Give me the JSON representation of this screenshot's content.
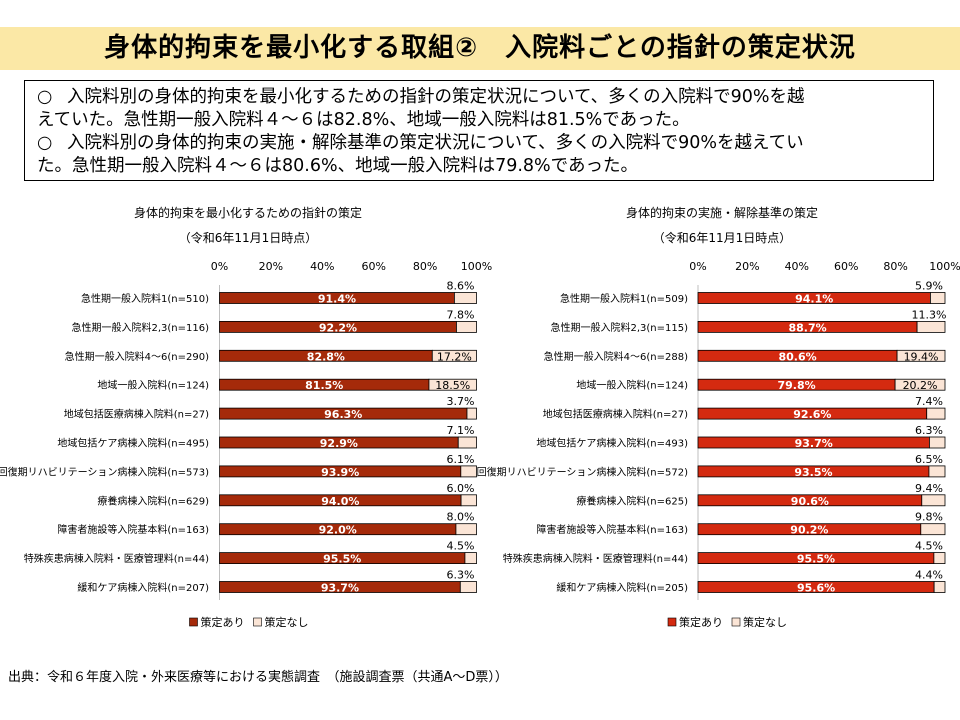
{
  "slide": {
    "title": "身体的拘束を最小化する取組②　入院料ごとの指針の策定状況",
    "summary": [
      {
        "mark": "○",
        "line1": "入院料別の身体的拘束を最小化するための指針の策定状況について、多くの入院料で90%を越",
        "line2": "えていた。急性期一般入院料４～６は82.8%、地域一般入院料は81.5%であった。"
      },
      {
        "mark": "○",
        "line1": "入院料別の身体的拘束の実施・解除基準の策定状況について、多くの入院料で90%を越えてい",
        "line2": "た。急性期一般入院料４～６は80.6%、地域一般入院料は79.8%であった。"
      }
    ],
    "source": "出典：令和６年度入院・外来医療等における実態調査　（施設調査票（共通A～D票））"
  },
  "chart_data": [
    {
      "type": "bar",
      "orientation": "horizontal",
      "stacked": true,
      "title": "身体的拘束を最小化するための指針の策定",
      "subtitle": "（令和6年11月1日時点）",
      "tick_labels": [
        "0%",
        "20%",
        "40%",
        "60%",
        "80%",
        "100%"
      ],
      "xlim": [
        0,
        100
      ],
      "legend_position": "bottom-left",
      "categories": [
        "急性期一般入院料1(n=510)",
        "急性期一般入院料2,3(n=116)",
        "急性期一般入院料4～6(n=290)",
        "地域一般入院料(n=124)",
        "地域包括医療病棟入院料(n=27)",
        "地域包括ケア病棟入院料(n=495)",
        "回復期リハビリテーション病棟入院料(n=573)",
        "療養病棟入院料(n=629)",
        "障害者施設等入院基本料(n=163)",
        "特殊疾患病棟入院料・医療管理料(n=44)",
        "緩和ケア病棟入院料(n=207)"
      ],
      "series": [
        {
          "name": "策定あり",
          "color": "#a52a0a",
          "values": [
            91.4,
            92.2,
            82.8,
            81.5,
            96.3,
            92.9,
            93.9,
            94.0,
            92.0,
            95.5,
            93.7
          ]
        },
        {
          "name": "策定なし",
          "color": "#fbe5d6",
          "values": [
            8.6,
            7.8,
            17.2,
            18.5,
            3.7,
            7.1,
            6.1,
            6.0,
            8.0,
            4.5,
            6.3
          ]
        }
      ]
    },
    {
      "type": "bar",
      "orientation": "horizontal",
      "stacked": true,
      "title": "身体的拘束の実施・解除基準の策定",
      "subtitle": "（令和6年11月1日時点）",
      "tick_labels": [
        "0%",
        "20%",
        "40%",
        "60%",
        "80%",
        "100%"
      ],
      "xlim": [
        0,
        100
      ],
      "legend_position": "bottom-left",
      "categories": [
        "急性期一般入院料1(n=509)",
        "急性期一般入院料2,3(n=115)",
        "急性期一般入院料4～6(n=288)",
        "地域一般入院料(n=124)",
        "地域包括医療病棟入院料(n=27)",
        "地域包括ケア病棟入院料(n=493)",
        "回復期リハビリテーション病棟入院料(n=572)",
        "療養病棟入院料(n=625)",
        "障害者施設等入院基本料(n=163)",
        "特殊疾患病棟入院料・医療管理料(n=44)",
        "緩和ケア病棟入院料(n=205)"
      ],
      "series": [
        {
          "name": "策定あり",
          "color": "#d42a10",
          "values": [
            94.1,
            88.7,
            80.6,
            79.8,
            92.6,
            93.7,
            93.5,
            90.6,
            90.2,
            95.5,
            95.6
          ]
        },
        {
          "name": "策定なし",
          "color": "#fbe5d6",
          "values": [
            5.9,
            11.3,
            19.4,
            20.2,
            7.4,
            6.3,
            6.5,
            9.4,
            9.8,
            4.5,
            4.4
          ]
        }
      ]
    }
  ]
}
